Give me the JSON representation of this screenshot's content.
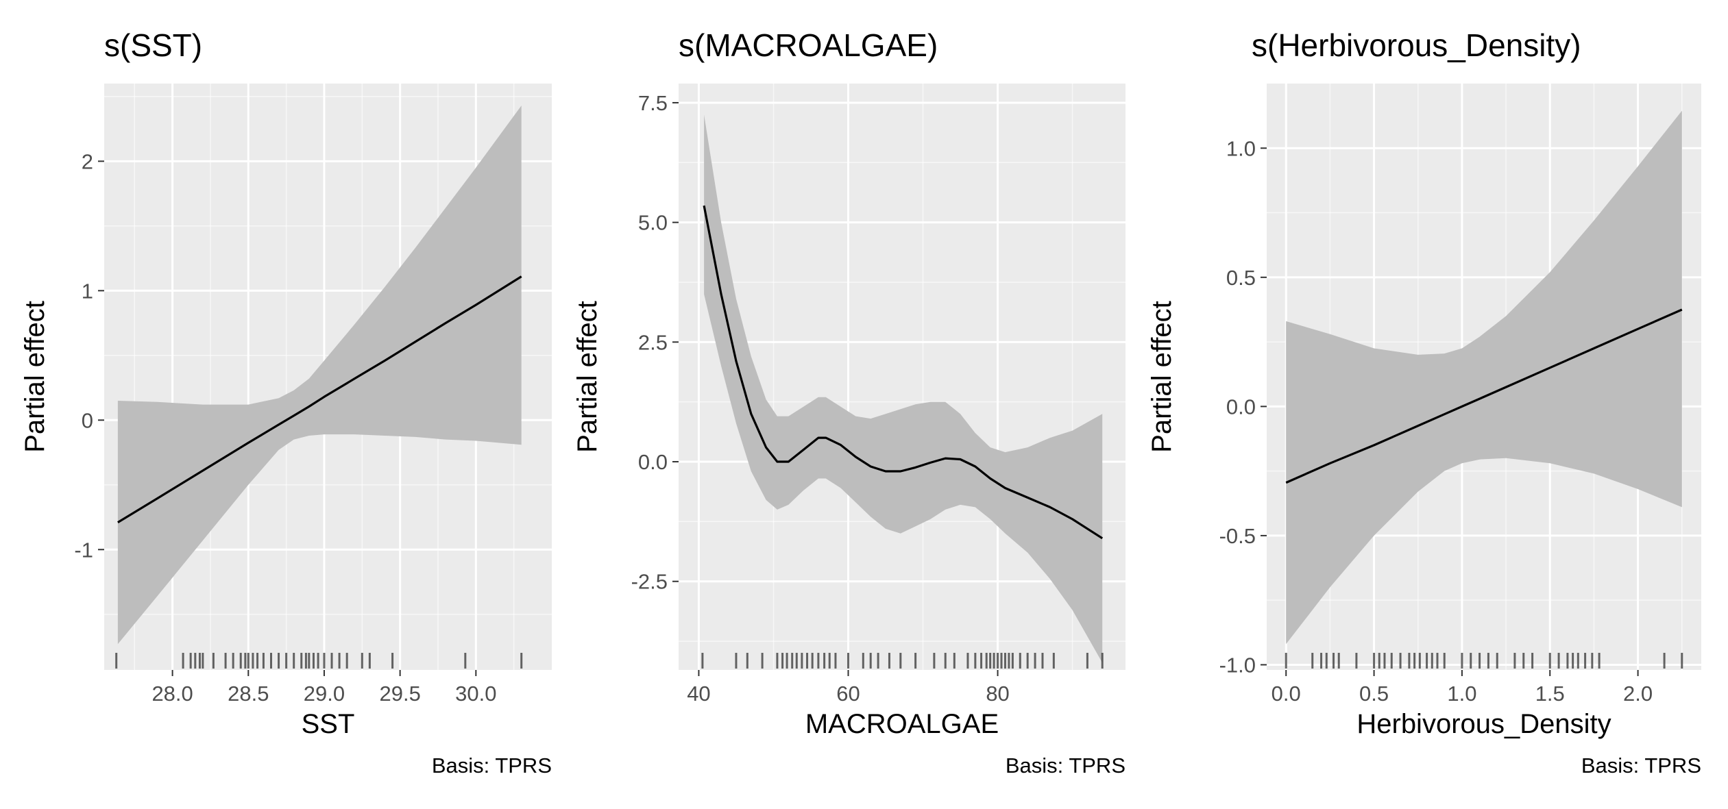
{
  "colors": {
    "panel_background": "#ebebeb",
    "grid_major": "#ffffff",
    "ribbon": "#bdbdbd",
    "line": "#000000",
    "rug": "#333333"
  },
  "chart_data": [
    {
      "type": "line",
      "title": "s(SST)",
      "xlabel": "SST",
      "ylabel": "Partial effect",
      "caption": "Basis: TPRS",
      "xlim": [
        27.55,
        30.5
      ],
      "ylim": [
        -1.93,
        2.6
      ],
      "x_ticks": [
        28.0,
        28.5,
        29.0,
        29.5,
        30.0
      ],
      "x_tick_labels": [
        "28.0",
        "28.5",
        "29.0",
        "29.5",
        "30.0"
      ],
      "y_ticks": [
        -1,
        0,
        1,
        2
      ],
      "y_tick_labels": [
        "-1",
        "0",
        "1",
        "2"
      ],
      "grid": true,
      "series": [
        {
          "x": [
            27.64,
            27.9,
            28.2,
            28.5,
            28.7,
            28.8,
            28.9,
            29.0,
            29.2,
            29.4,
            29.6,
            29.8,
            30.0,
            30.3
          ],
          "y": [
            -0.79,
            -0.605,
            -0.39,
            -0.175,
            -0.035,
            0.035,
            0.105,
            0.18,
            0.32,
            0.46,
            0.605,
            0.75,
            0.89,
            1.11
          ],
          "lower": [
            -1.73,
            -1.36,
            -0.93,
            -0.5,
            -0.23,
            -0.15,
            -0.12,
            -0.11,
            -0.11,
            -0.12,
            -0.13,
            -0.15,
            -0.16,
            -0.19
          ],
          "upper": [
            0.15,
            0.14,
            0.12,
            0.12,
            0.17,
            0.23,
            0.32,
            0.46,
            0.74,
            1.03,
            1.33,
            1.64,
            1.95,
            2.43
          ]
        }
      ],
      "rug": [
        27.63,
        28.07,
        28.12,
        28.15,
        28.18,
        28.2,
        28.27,
        28.35,
        28.4,
        28.45,
        28.48,
        28.5,
        28.53,
        28.56,
        28.6,
        28.65,
        28.7,
        28.75,
        28.8,
        28.85,
        28.88,
        28.9,
        28.93,
        28.96,
        29.0,
        29.05,
        29.1,
        29.15,
        29.25,
        29.3,
        29.45,
        29.93,
        30.3
      ]
    },
    {
      "type": "line",
      "title": "s(MACROALGAE)",
      "xlabel": "MACROALGAE",
      "ylabel": "Partial effect",
      "caption": "Basis: TPRS",
      "xlim": [
        37.3,
        97.1
      ],
      "ylim": [
        -4.35,
        7.9
      ],
      "x_ticks": [
        40,
        60,
        80
      ],
      "x_tick_labels": [
        "40",
        "60",
        "80"
      ],
      "y_ticks": [
        -2.5,
        0.0,
        2.5,
        5.0,
        7.5
      ],
      "y_tick_labels": [
        "-2.5",
        "0.0",
        "2.5",
        "5.0",
        "7.5"
      ],
      "grid": true,
      "series": [
        {
          "x": [
            40.7,
            43,
            45,
            47,
            49,
            50.5,
            52,
            54,
            56,
            57,
            59,
            61,
            63,
            65,
            67,
            69,
            71,
            73,
            75,
            77,
            79,
            81,
            84,
            87,
            90,
            94
          ],
          "y": [
            5.35,
            3.5,
            2.1,
            1.0,
            0.3,
            0.0,
            0.0,
            0.25,
            0.5,
            0.5,
            0.35,
            0.1,
            -0.1,
            -0.2,
            -0.2,
            -0.12,
            -0.02,
            0.07,
            0.05,
            -0.1,
            -0.35,
            -0.55,
            -0.75,
            -0.95,
            -1.2,
            -1.6
          ],
          "lower": [
            3.5,
            2.0,
            0.8,
            -0.2,
            -0.8,
            -1.0,
            -0.9,
            -0.6,
            -0.35,
            -0.35,
            -0.55,
            -0.85,
            -1.15,
            -1.4,
            -1.5,
            -1.35,
            -1.2,
            -1.0,
            -0.9,
            -0.95,
            -1.2,
            -1.5,
            -1.9,
            -2.45,
            -3.1,
            -4.2
          ],
          "upper": [
            7.25,
            5.0,
            3.4,
            2.2,
            1.3,
            0.95,
            0.95,
            1.15,
            1.35,
            1.35,
            1.15,
            0.95,
            0.9,
            1.0,
            1.1,
            1.2,
            1.25,
            1.25,
            1.0,
            0.6,
            0.3,
            0.2,
            0.3,
            0.5,
            0.65,
            1.0
          ]
        }
      ],
      "rug": [
        40.5,
        45,
        46.5,
        48.5,
        50.5,
        51.2,
        51.8,
        52.5,
        53.1,
        53.8,
        54.5,
        55.2,
        56,
        56.8,
        57.5,
        58.3,
        60,
        62,
        63,
        64,
        65.5,
        67,
        69,
        71.5,
        73,
        74.2,
        76,
        77,
        77.8,
        78.5,
        79,
        79.5,
        80,
        80.5,
        81,
        81.5,
        82,
        83,
        84,
        85,
        86,
        87.5,
        92,
        94
      ]
    },
    {
      "type": "line",
      "title": "s(Herbivorous_Density)",
      "xlabel": "Herbivorous_Density",
      "ylabel": "Partial effect",
      "caption": "Basis: TPRS",
      "xlim": [
        -0.11,
        2.36
      ],
      "ylim": [
        -1.02,
        1.25
      ],
      "x_ticks": [
        0.0,
        0.5,
        1.0,
        1.5,
        2.0
      ],
      "x_tick_labels": [
        "0.0",
        "0.5",
        "1.0",
        "1.5",
        "2.0"
      ],
      "y_ticks": [
        -1.0,
        -0.5,
        0.0,
        0.5,
        1.0
      ],
      "y_tick_labels": [
        "-1.0",
        "-0.5",
        "0.0",
        "0.5",
        "1.0"
      ],
      "grid": true,
      "series": [
        {
          "x": [
            0.0,
            0.25,
            0.5,
            0.75,
            0.9,
            1.0,
            1.1,
            1.25,
            1.5,
            1.75,
            2.0,
            2.25
          ],
          "y": [
            -0.295,
            -0.22,
            -0.15,
            -0.075,
            -0.03,
            0.0,
            0.03,
            0.075,
            0.15,
            0.225,
            0.3,
            0.375
          ],
          "lower": [
            -0.92,
            -0.7,
            -0.5,
            -0.33,
            -0.25,
            -0.22,
            -0.205,
            -0.2,
            -0.22,
            -0.26,
            -0.32,
            -0.39
          ],
          "upper": [
            0.33,
            0.28,
            0.225,
            0.2,
            0.205,
            0.225,
            0.27,
            0.35,
            0.52,
            0.72,
            0.93,
            1.145
          ]
        }
      ],
      "rug": [
        0.0,
        0.15,
        0.2,
        0.23,
        0.27,
        0.3,
        0.4,
        0.5,
        0.53,
        0.56,
        0.6,
        0.65,
        0.7,
        0.73,
        0.76,
        0.8,
        0.83,
        0.86,
        0.9,
        1.0,
        1.05,
        1.1,
        1.15,
        1.2,
        1.3,
        1.35,
        1.4,
        1.5,
        1.55,
        1.6,
        1.63,
        1.66,
        1.7,
        1.74,
        1.78,
        2.15,
        2.25
      ]
    }
  ]
}
